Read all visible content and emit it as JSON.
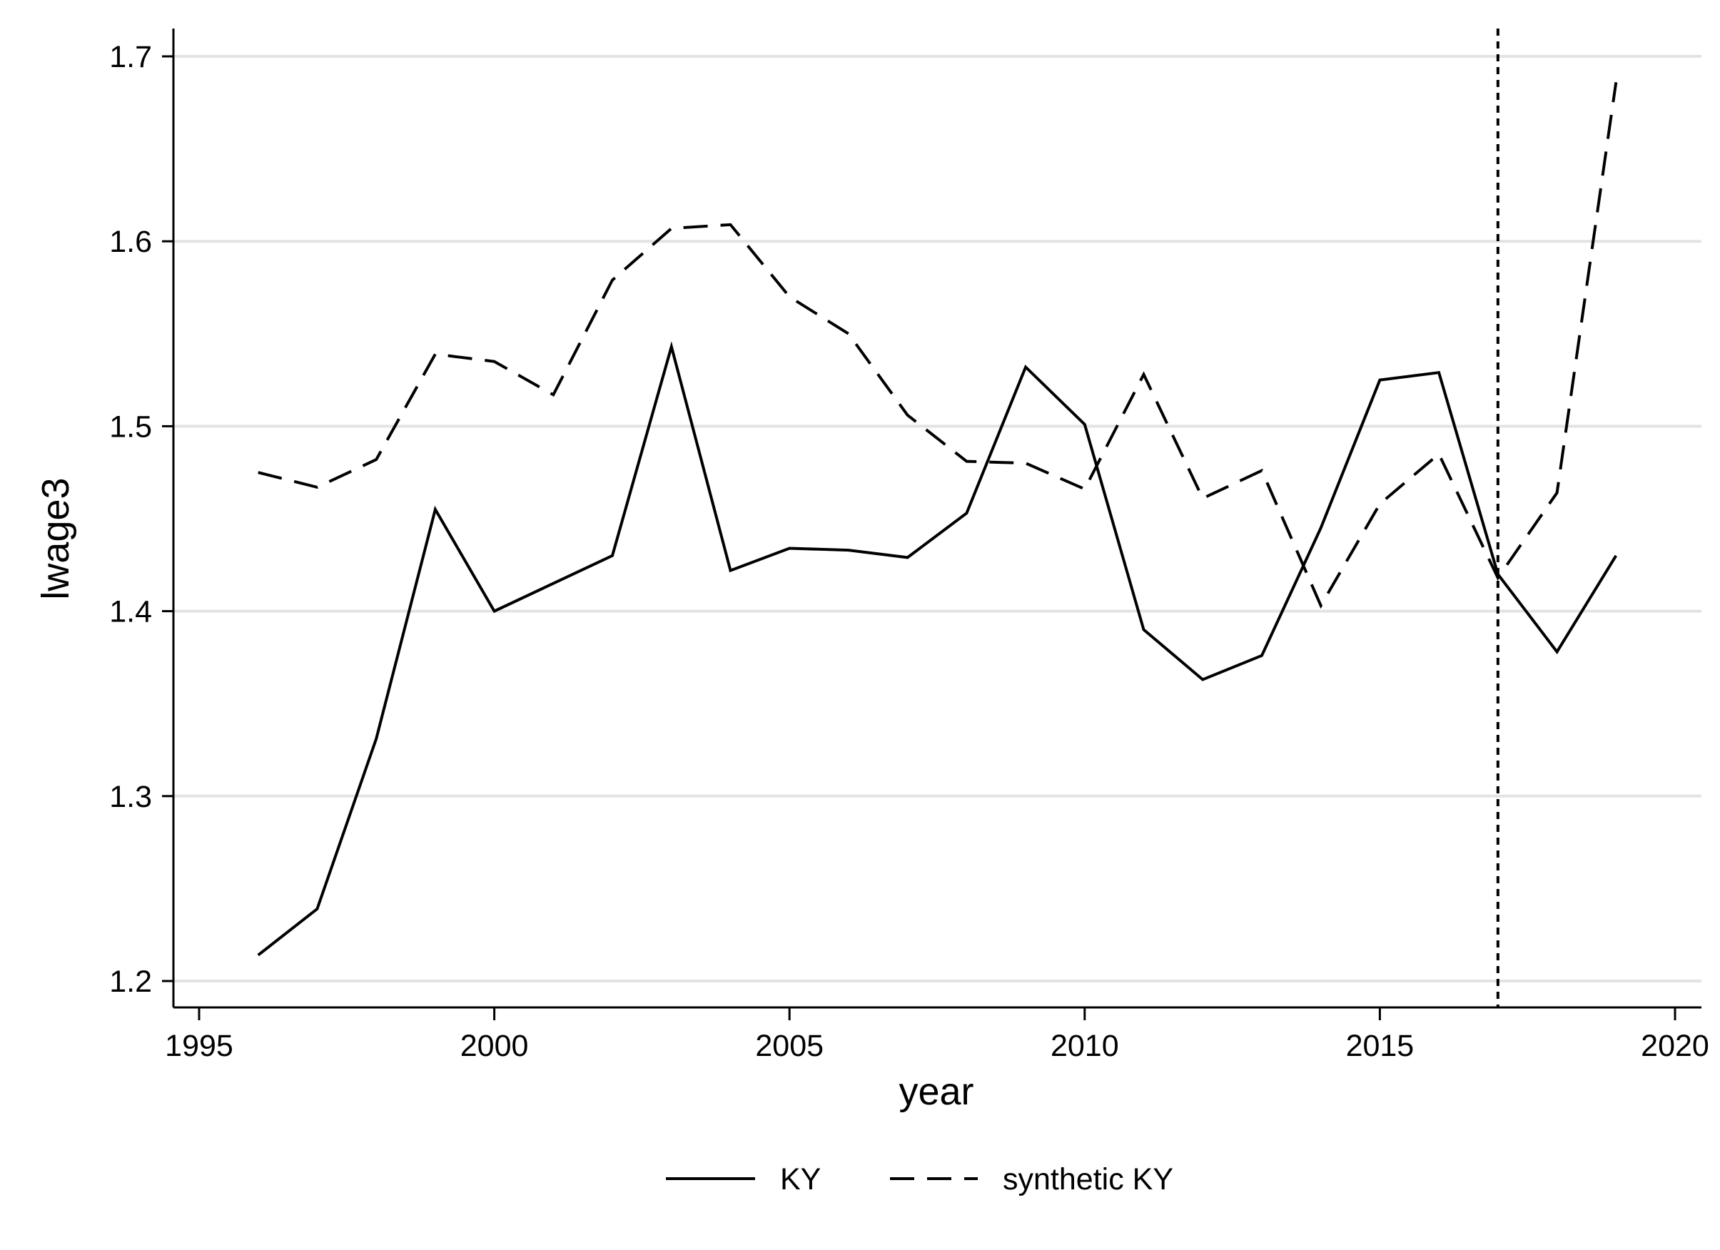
{
  "chart_data": {
    "type": "line",
    "title": "",
    "xlabel": "year",
    "ylabel": "lwage3",
    "xlim": [
      1995,
      2020
    ],
    "ylim": [
      1.2,
      1.7
    ],
    "xticks": [
      "1995",
      "2000",
      "2005",
      "2010",
      "2015",
      "2020"
    ],
    "yticks": [
      "1.2",
      "1.3",
      "1.4",
      "1.5",
      "1.6",
      "1.7"
    ],
    "grid": "horizontal",
    "legend_position": "bottom",
    "x": [
      1996,
      1997,
      1998,
      1999,
      2000,
      2001,
      2002,
      2003,
      2004,
      2005,
      2006,
      2007,
      2008,
      2009,
      2010,
      2011,
      2012,
      2013,
      2014,
      2015,
      2016,
      2017,
      2018,
      2019
    ],
    "series": [
      {
        "name": "KY",
        "style": "solid",
        "values": [
          1.214,
          1.239,
          1.331,
          1.455,
          1.4,
          1.415,
          1.43,
          1.543,
          1.422,
          1.434,
          1.433,
          1.429,
          1.453,
          1.532,
          1.501,
          1.39,
          1.363,
          1.376,
          1.445,
          1.525,
          1.529,
          1.42,
          1.378,
          1.43
        ]
      },
      {
        "name": "synthetic KY",
        "style": "dashed",
        "values": [
          1.475,
          1.467,
          1.482,
          1.539,
          1.535,
          1.517,
          1.579,
          1.607,
          1.609,
          1.57,
          1.55,
          1.506,
          1.481,
          1.48,
          1.466,
          1.528,
          1.461,
          1.476,
          1.403,
          1.458,
          1.485,
          1.418,
          1.464,
          1.686
        ]
      }
    ],
    "reference_line": {
      "x": 2017,
      "style": "dotted"
    },
    "colors": {
      "line": "#000000",
      "grid": "#e3e3e3",
      "background": "#ffffff"
    }
  }
}
